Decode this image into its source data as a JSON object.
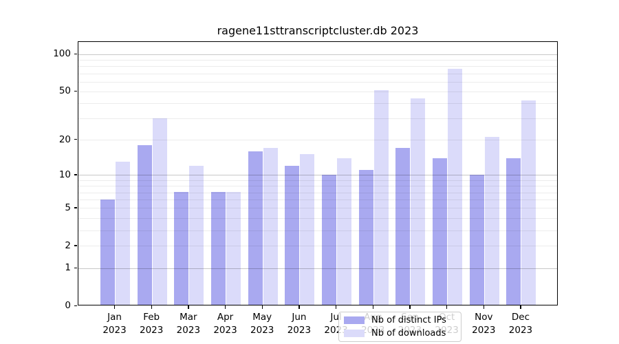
{
  "chart_data": {
    "type": "bar",
    "title": "ragene11sttranscriptcluster.db 2023",
    "x_labels": [
      {
        "line1": "Jan",
        "line2": "2023"
      },
      {
        "line1": "Feb",
        "line2": "2023"
      },
      {
        "line1": "Mar",
        "line2": "2023"
      },
      {
        "line1": "Apr",
        "line2": "2023"
      },
      {
        "line1": "May",
        "line2": "2023"
      },
      {
        "line1": "Jun",
        "line2": "2023"
      },
      {
        "line1": "Jul",
        "line2": "2023"
      },
      {
        "line1": "Aug",
        "line2": "2023"
      },
      {
        "line1": "Sep",
        "line2": "2023"
      },
      {
        "line1": "Oct",
        "line2": "2023"
      },
      {
        "line1": "Nov",
        "line2": "2023"
      },
      {
        "line1": "Dec",
        "line2": "2023"
      }
    ],
    "series": [
      {
        "name": "Nb of distinct IPs",
        "color": "#a9a9f0",
        "values": [
          6,
          18,
          7,
          7,
          16,
          12,
          10,
          11,
          17,
          14,
          10,
          14
        ]
      },
      {
        "name": "Nb of downloads",
        "color": "#dbdbfa",
        "values": [
          13,
          30,
          12,
          7,
          17,
          15,
          14,
          51,
          44,
          76,
          21,
          42
        ]
      }
    ],
    "y_axis": {
      "scale": "log10(1+x)",
      "ticks": [
        {
          "value": 0,
          "label": "0"
        },
        {
          "value": 1,
          "label": "1"
        },
        {
          "value": 2,
          "label": "2"
        },
        {
          "value": 5,
          "label": "5"
        },
        {
          "value": 10,
          "label": "10"
        },
        {
          "value": 20,
          "label": "20"
        },
        {
          "value": 50,
          "label": "50"
        },
        {
          "value": 100,
          "label": "100"
        }
      ],
      "top_value": 127
    },
    "gridlines": {
      "minor": [
        2,
        3,
        4,
        5,
        6,
        7,
        8,
        9,
        20,
        30,
        40,
        50,
        60,
        70,
        80,
        90
      ],
      "major": [
        1,
        10,
        100
      ]
    },
    "legend": {
      "position": "bottom-center"
    }
  }
}
